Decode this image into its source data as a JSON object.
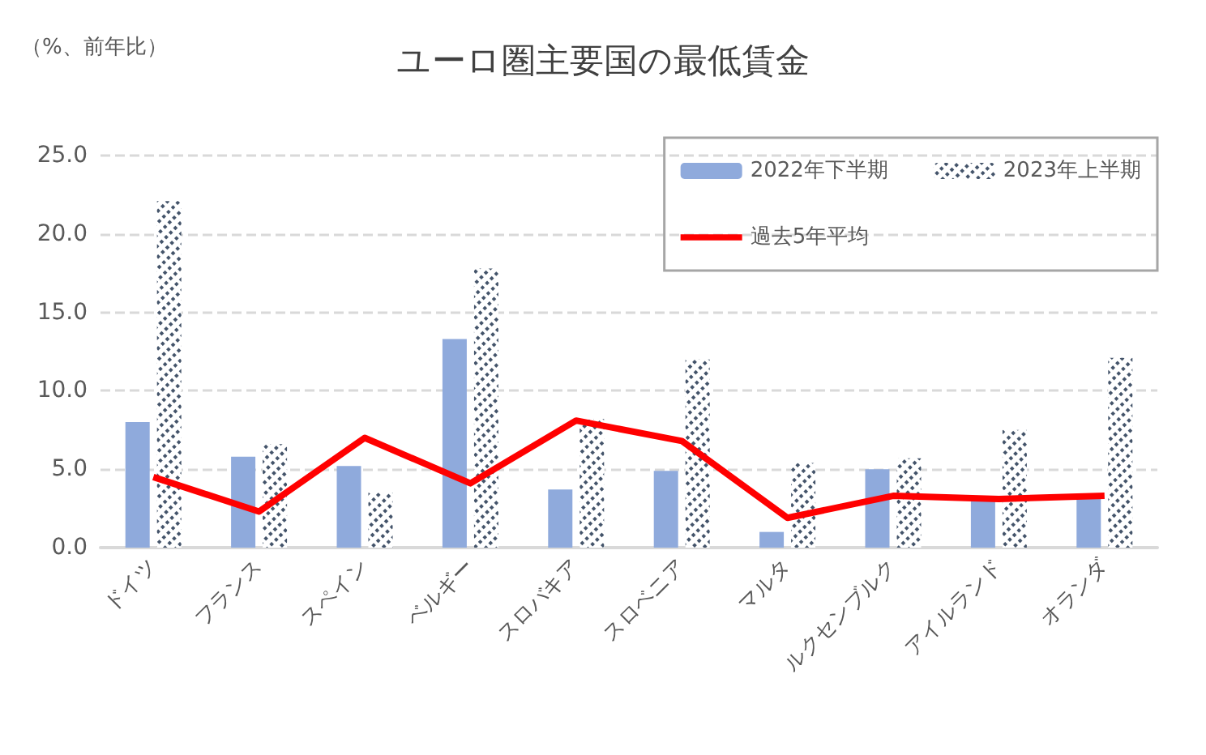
{
  "chart_data": {
    "type": "bar",
    "title": "ユーロ圏主要国の最低賃金",
    "ylabel": "（%、前年比）",
    "categories": [
      "ドイツ",
      "フランス",
      "スペイン",
      "ベルギー",
      "スロバキア",
      "スロベニア",
      "マルタ",
      "ルクセンブルク",
      "アイルランド",
      "オランダ"
    ],
    "series": [
      {
        "name": "2022年下半期",
        "color": "#8faadc",
        "values": [
          8.0,
          5.8,
          5.2,
          13.3,
          3.7,
          4.9,
          1.0,
          5.0,
          3.0,
          3.1
        ]
      },
      {
        "name": "2023年上半期",
        "color": "#44546a",
        "values": [
          22.1,
          6.6,
          3.5,
          17.8,
          8.2,
          12.0,
          5.4,
          5.7,
          7.5,
          12.1
        ]
      },
      {
        "name": "過去5年平均",
        "type": "line",
        "color": "#ff0000",
        "values": [
          4.5,
          2.3,
          7.0,
          4.1,
          8.1,
          6.8,
          1.9,
          3.3,
          3.1,
          3.3
        ]
      }
    ],
    "ylim": [
      0,
      25
    ],
    "yticks": [
      {
        "value": 0,
        "label": "0.0"
      },
      {
        "value": 5,
        "label": "5.0"
      },
      {
        "value": 10,
        "label": "10.0"
      },
      {
        "value": 15,
        "label": "15.0"
      },
      {
        "value": 20,
        "label": "20.0"
      },
      {
        "value": 25,
        "label": "25.0"
      }
    ],
    "grid": "y",
    "legend": "top right",
    "marker": "none",
    "line_style": "solid"
  }
}
